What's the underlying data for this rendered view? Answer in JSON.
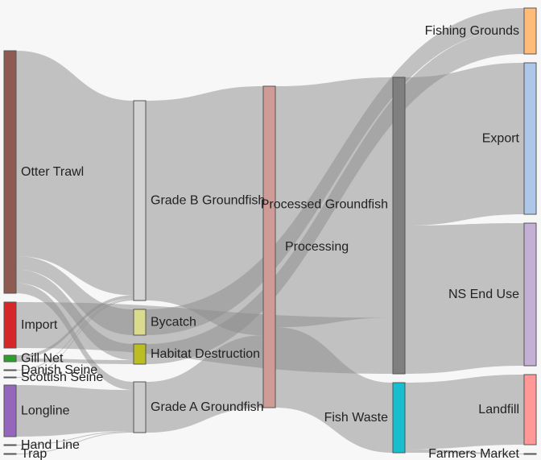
{
  "chart_data": {
    "type": "sankey",
    "colors": {
      "link": "#8c8c8c",
      "background": "#f7f7f7"
    },
    "nodes": [
      {
        "id": "otter_trawl",
        "label": "Otter Trawl",
        "color": "#8d5b52"
      },
      {
        "id": "import",
        "label": "Import",
        "color": "#d62728"
      },
      {
        "id": "gill_net",
        "label": "Gill Net",
        "color": "#2ca02c"
      },
      {
        "id": "danish_seine",
        "label": "Danish Seine",
        "color": "#c5b0d5"
      },
      {
        "id": "scottish_seine",
        "label": "Scottish Seine",
        "color": "#c5b0d5"
      },
      {
        "id": "longline",
        "label": "Longline",
        "color": "#9467bd"
      },
      {
        "id": "hand_line",
        "label": "Hand Line",
        "color": "#e377c2"
      },
      {
        "id": "trap",
        "label": "Trap",
        "color": "#7f7f7f"
      },
      {
        "id": "grade_b",
        "label": "Grade B Groundfish",
        "color": "#d3d3d3"
      },
      {
        "id": "bycatch",
        "label": "Bycatch",
        "color": "#dbdb8d"
      },
      {
        "id": "habitat",
        "label": "Habitat Destruction",
        "color": "#bcbd22"
      },
      {
        "id": "grade_a",
        "label": "Grade A Groundfish",
        "color": "#cccccc"
      },
      {
        "id": "processing",
        "label": "Processing",
        "color": "#cf9b97"
      },
      {
        "id": "processed",
        "label": "Processed Groundfish",
        "color": "#7f7f7f"
      },
      {
        "id": "fish_waste",
        "label": "Fish Waste",
        "color": "#17becf"
      },
      {
        "id": "fishing_grounds",
        "label": "Fishing Grounds",
        "color": "#ffbb78"
      },
      {
        "id": "export",
        "label": "Export",
        "color": "#aec7e8"
      },
      {
        "id": "ns_end_use",
        "label": "NS End Use",
        "color": "#c5b0d5"
      },
      {
        "id": "landfill",
        "label": "Landfill",
        "color": "#ff9896"
      },
      {
        "id": "farmers_market",
        "label": "Farmers Market",
        "color": "#9edae5"
      }
    ],
    "links": [
      {
        "source": "otter_trawl",
        "target": "grade_b",
        "value": 61
      },
      {
        "source": "otter_trawl",
        "target": "bycatch",
        "value": 4
      },
      {
        "source": "otter_trawl",
        "target": "habitat",
        "value": 4
      },
      {
        "source": "otter_trawl",
        "target": "grade_a",
        "value": 3
      },
      {
        "source": "import",
        "target": "processed",
        "value": 14
      },
      {
        "source": "gill_net",
        "target": "grade_b",
        "value": 1
      },
      {
        "source": "gill_net",
        "target": "habitat",
        "value": 1
      },
      {
        "source": "danish_seine",
        "target": "grade_b",
        "value": 0.3
      },
      {
        "source": "scottish_seine",
        "target": "grade_b",
        "value": 0.3
      },
      {
        "source": "longline",
        "target": "grade_a",
        "value": 15
      },
      {
        "source": "hand_line",
        "target": "grade_a",
        "value": 0.3
      },
      {
        "source": "trap",
        "target": "grade_a",
        "value": 0.3
      },
      {
        "source": "grade_b",
        "target": "processing",
        "value": 62
      },
      {
        "source": "grade_a",
        "target": "processing",
        "value": 18
      },
      {
        "source": "bycatch",
        "target": "fishing_grounds",
        "value": 4
      },
      {
        "source": "habitat",
        "target": "fishing_grounds",
        "value": 5
      },
      {
        "source": "processing",
        "target": "processed",
        "value": 60
      },
      {
        "source": "processing",
        "target": "fish_waste",
        "value": 20
      },
      {
        "source": "processed",
        "target": "export",
        "value": 37
      },
      {
        "source": "processed",
        "target": "ns_end_use",
        "value": 37
      },
      {
        "source": "fish_waste",
        "target": "landfill",
        "value": 19
      },
      {
        "source": "fish_waste",
        "target": "farmers_market",
        "value": 1
      }
    ]
  }
}
